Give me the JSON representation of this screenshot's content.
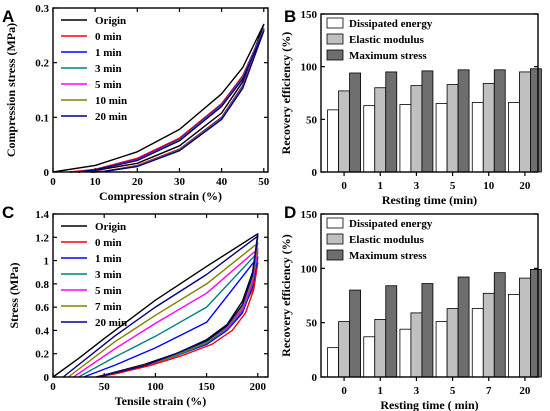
{
  "chart_data": [
    {
      "panel": "A",
      "type": "line",
      "xlabel": "Compression strain (%)",
      "ylabel": "Compression stress (MPa)",
      "xlim": [
        0,
        51
      ],
      "ylim": [
        0,
        0.3
      ],
      "xticks": [
        0,
        10,
        20,
        30,
        40,
        50
      ],
      "yticks": [
        0.0,
        0.1,
        0.2,
        0.3
      ],
      "grid": false,
      "legend_position": "top-left",
      "series": [
        {
          "name": "Origin",
          "color": "#000000",
          "loading": [
            [
              0,
              0
            ],
            [
              10,
              0.012
            ],
            [
              20,
              0.037
            ],
            [
              30,
              0.078
            ],
            [
              40,
              0.143
            ],
            [
              45,
              0.191
            ],
            [
              50,
              0.27
            ]
          ],
          "unloading": [
            [
              50,
              0.27
            ],
            [
              45,
              0.165
            ],
            [
              40,
              0.108
            ],
            [
              30,
              0.048
            ],
            [
              20,
              0.016
            ],
            [
              10,
              0.003
            ],
            [
              4,
              0
            ]
          ]
        },
        {
          "name": "0 min",
          "color": "#ff0000",
          "loading": [
            [
              4,
              0
            ],
            [
              10,
              0.005
            ],
            [
              20,
              0.025
            ],
            [
              30,
              0.062
            ],
            [
              40,
              0.125
            ],
            [
              45,
              0.176
            ],
            [
              50,
              0.262
            ]
          ],
          "unloading": [
            [
              50,
              0.262
            ],
            [
              45,
              0.158
            ],
            [
              40,
              0.1
            ],
            [
              30,
              0.042
            ],
            [
              20,
              0.012
            ],
            [
              12,
              0.001
            ],
            [
              9,
              0
            ]
          ]
        },
        {
          "name": "1 min",
          "color": "#0000ff",
          "loading": [
            [
              6,
              0
            ],
            [
              10,
              0.004
            ],
            [
              20,
              0.023
            ],
            [
              30,
              0.06
            ],
            [
              40,
              0.123
            ],
            [
              45,
              0.174
            ],
            [
              50,
              0.262
            ]
          ],
          "unloading": [
            [
              50,
              0.262
            ],
            [
              45,
              0.157
            ],
            [
              40,
              0.099
            ],
            [
              30,
              0.041
            ],
            [
              20,
              0.011
            ],
            [
              12,
              0.001
            ],
            [
              9,
              0
            ]
          ]
        },
        {
          "name": "3 min",
          "color": "#008080",
          "loading": [
            [
              6,
              0
            ],
            [
              10,
              0.004
            ],
            [
              20,
              0.022
            ],
            [
              30,
              0.059
            ],
            [
              40,
              0.122
            ],
            [
              45,
              0.173
            ],
            [
              50,
              0.261
            ]
          ],
          "unloading": [
            [
              50,
              0.261
            ],
            [
              45,
              0.156
            ],
            [
              40,
              0.098
            ],
            [
              30,
              0.041
            ],
            [
              20,
              0.011
            ],
            [
              12,
              0.001
            ],
            [
              9,
              0
            ]
          ]
        },
        {
          "name": "5 min",
          "color": "#ff00ff",
          "loading": [
            [
              6,
              0
            ],
            [
              10,
              0.004
            ],
            [
              20,
              0.022
            ],
            [
              30,
              0.058
            ],
            [
              40,
              0.121
            ],
            [
              45,
              0.172
            ],
            [
              50,
              0.26
            ]
          ],
          "unloading": [
            [
              50,
              0.26
            ],
            [
              45,
              0.155
            ],
            [
              40,
              0.097
            ],
            [
              30,
              0.04
            ],
            [
              20,
              0.011
            ],
            [
              12,
              0.001
            ],
            [
              9,
              0
            ]
          ]
        },
        {
          "name": "10 min",
          "color": "#808000",
          "loading": [
            [
              6,
              0
            ],
            [
              10,
              0.004
            ],
            [
              20,
              0.021
            ],
            [
              30,
              0.058
            ],
            [
              40,
              0.12
            ],
            [
              45,
              0.171
            ],
            [
              50,
              0.259
            ]
          ],
          "unloading": [
            [
              50,
              0.259
            ],
            [
              45,
              0.154
            ],
            [
              40,
              0.097
            ],
            [
              30,
              0.04
            ],
            [
              20,
              0.011
            ],
            [
              12,
              0.001
            ],
            [
              9,
              0
            ]
          ]
        },
        {
          "name": "20 min",
          "color": "#000080",
          "loading": [
            [
              6,
              0
            ],
            [
              10,
              0.004
            ],
            [
              20,
              0.021
            ],
            [
              30,
              0.057
            ],
            [
              40,
              0.12
            ],
            [
              45,
              0.17
            ],
            [
              50,
              0.258
            ]
          ],
          "unloading": [
            [
              50,
              0.258
            ],
            [
              45,
              0.153
            ],
            [
              40,
              0.096
            ],
            [
              30,
              0.039
            ],
            [
              20,
              0.01
            ],
            [
              12,
              0.001
            ],
            [
              9,
              0
            ]
          ]
        }
      ]
    },
    {
      "panel": "B",
      "type": "bar",
      "xlabel": "Resting time (min)",
      "ylabel": "Recovery efficiency (%)",
      "ylim": [
        0,
        150
      ],
      "yticks": [
        0,
        50,
        100,
        150
      ],
      "grid": false,
      "legend_position": "top-left",
      "categories": [
        "0",
        "1",
        "3",
        "5",
        "10",
        "20"
      ],
      "series": [
        {
          "name": "Dissipated energy",
          "color": "#ffffff",
          "values": [
            59,
            63,
            64,
            65,
            66,
            66
          ]
        },
        {
          "name": "Elastic modulus",
          "color": "#c0c0c0",
          "values": [
            77,
            80,
            82,
            83,
            84,
            95
          ]
        },
        {
          "name": "Maximum stress",
          "color": "#6e6e6e",
          "values": [
            94,
            95,
            96,
            97,
            97,
            98
          ]
        }
      ]
    },
    {
      "panel": "C",
      "type": "line",
      "xlabel": "Tensile strain (%)",
      "ylabel": "Stress (MPa)",
      "xlim": [
        0,
        210
      ],
      "ylim": [
        0,
        1.4
      ],
      "xticks": [
        0,
        50,
        100,
        150,
        200
      ],
      "yticks": [
        0.0,
        0.2,
        0.4,
        0.6,
        0.8,
        1.0,
        1.2,
        1.4
      ],
      "grid": false,
      "legend_position": "top-left",
      "series": [
        {
          "name": "Origin",
          "color": "#000000",
          "loading": [
            [
              0,
              0
            ],
            [
              25,
              0.16
            ],
            [
              50,
              0.33
            ],
            [
              100,
              0.66
            ],
            [
              150,
              0.95
            ],
            [
              200,
              1.23
            ]
          ],
          "unloading": [
            [
              200,
              1.23
            ],
            [
              195,
              0.9
            ],
            [
              185,
              0.65
            ],
            [
              170,
              0.45
            ],
            [
              150,
              0.32
            ],
            [
              120,
              0.2
            ],
            [
              90,
              0.11
            ],
            [
              60,
              0.04
            ],
            [
              42,
              0
            ]
          ]
        },
        {
          "name": "0 min",
          "color": "#ff0000",
          "loading": [
            [
              42,
              0
            ],
            [
              60,
              0.03
            ],
            [
              100,
              0.13
            ],
            [
              150,
              0.3
            ],
            [
              180,
              0.5
            ],
            [
              195,
              0.75
            ],
            [
              200,
              0.98
            ]
          ],
          "unloading": [
            [
              200,
              0.98
            ],
            [
              196,
              0.75
            ],
            [
              188,
              0.55
            ],
            [
              175,
              0.4
            ],
            [
              155,
              0.28
            ],
            [
              125,
              0.18
            ],
            [
              95,
              0.1
            ],
            [
              65,
              0.035
            ],
            [
              45,
              0
            ]
          ]
        },
        {
          "name": "1 min",
          "color": "#0000ff",
          "loading": [
            [
              30,
              0
            ],
            [
              60,
              0.1
            ],
            [
              100,
              0.25
            ],
            [
              150,
              0.47
            ],
            [
              200,
              1.03
            ]
          ],
          "unloading": [
            [
              200,
              1.03
            ],
            [
              195,
              0.78
            ],
            [
              185,
              0.55
            ],
            [
              170,
              0.4
            ],
            [
              150,
              0.28
            ],
            [
              120,
              0.18
            ],
            [
              90,
              0.1
            ],
            [
              60,
              0.035
            ],
            [
              43,
              0
            ]
          ]
        },
        {
          "name": "3 min",
          "color": "#008080",
          "loading": [
            [
              25,
              0
            ],
            [
              60,
              0.17
            ],
            [
              100,
              0.35
            ],
            [
              150,
              0.6
            ],
            [
              200,
              1.07
            ]
          ],
          "unloading": [
            [
              200,
              1.07
            ],
            [
              195,
              0.8
            ],
            [
              185,
              0.57
            ],
            [
              170,
              0.41
            ],
            [
              150,
              0.29
            ],
            [
              120,
              0.18
            ],
            [
              90,
              0.1
            ],
            [
              60,
              0.035
            ],
            [
              43,
              0
            ]
          ]
        },
        {
          "name": "5 min",
          "color": "#ff00ff",
          "loading": [
            [
              20,
              0
            ],
            [
              60,
              0.24
            ],
            [
              100,
              0.46
            ],
            [
              150,
              0.72
            ],
            [
              200,
              1.1
            ]
          ],
          "unloading": [
            [
              200,
              1.1
            ],
            [
              195,
              0.82
            ],
            [
              185,
              0.58
            ],
            [
              170,
              0.42
            ],
            [
              150,
              0.3
            ],
            [
              120,
              0.19
            ],
            [
              90,
              0.1
            ],
            [
              60,
              0.035
            ],
            [
              43,
              0
            ]
          ]
        },
        {
          "name": "7 min",
          "color": "#808000",
          "loading": [
            [
              15,
              0
            ],
            [
              60,
              0.3
            ],
            [
              100,
              0.53
            ],
            [
              150,
              0.8
            ],
            [
              200,
              1.15
            ]
          ],
          "unloading": [
            [
              200,
              1.15
            ],
            [
              195,
              0.85
            ],
            [
              185,
              0.6
            ],
            [
              170,
              0.43
            ],
            [
              150,
              0.3
            ],
            [
              120,
              0.19
            ],
            [
              90,
              0.1
            ],
            [
              60,
              0.035
            ],
            [
              43,
              0
            ]
          ]
        },
        {
          "name": "20 min",
          "color": "#000080",
          "loading": [
            [
              10,
              0
            ],
            [
              60,
              0.35
            ],
            [
              100,
              0.6
            ],
            [
              150,
              0.88
            ],
            [
              200,
              1.21
            ]
          ],
          "unloading": [
            [
              200,
              1.21
            ],
            [
              195,
              0.88
            ],
            [
              185,
              0.62
            ],
            [
              170,
              0.44
            ],
            [
              150,
              0.31
            ],
            [
              120,
              0.2
            ],
            [
              90,
              0.1
            ],
            [
              60,
              0.035
            ],
            [
              43,
              0
            ]
          ]
        }
      ]
    },
    {
      "panel": "D",
      "type": "bar",
      "xlabel": "Resting time ( min)",
      "ylabel": "Recovery efficiency (%)",
      "ylim": [
        0,
        150
      ],
      "yticks": [
        0,
        50,
        100,
        150
      ],
      "grid": false,
      "legend_position": "top-left",
      "categories": [
        "0",
        "1",
        "3",
        "5",
        "7",
        "20"
      ],
      "series": [
        {
          "name": "Dissipated energy",
          "color": "#ffffff",
          "values": [
            27,
            37,
            44,
            51,
            63,
            76
          ]
        },
        {
          "name": "Elastic modulus",
          "color": "#c0c0c0",
          "values": [
            51,
            53,
            59,
            63,
            77,
            91
          ]
        },
        {
          "name": "Maximum stress",
          "color": "#6e6e6e",
          "values": [
            80,
            84,
            86,
            92,
            96,
            99
          ]
        }
      ]
    }
  ]
}
